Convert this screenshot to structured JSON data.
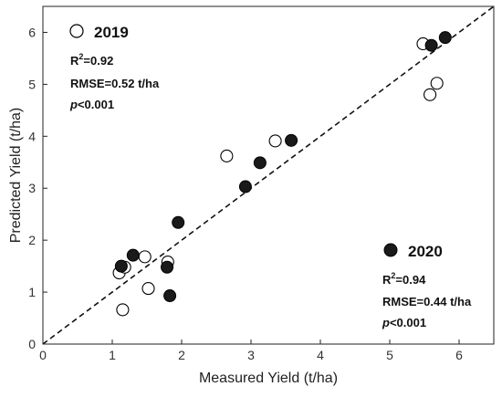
{
  "chart_data": {
    "type": "scatter",
    "title": "",
    "xlabel": "Measured Yield (t/ha)",
    "ylabel": "Predicted Yield (t/ha)",
    "xlim": [
      0,
      6.5
    ],
    "ylim": [
      0,
      6.5
    ],
    "x_ticks": [
      "0",
      "1",
      "2",
      "3",
      "4",
      "5",
      "6"
    ],
    "y_ticks": [
      "0",
      "1",
      "2",
      "3",
      "4",
      "5",
      "6"
    ],
    "grid": false,
    "reference_line": {
      "style": "dashed",
      "from": [
        0,
        0
      ],
      "to": [
        6.5,
        6.5
      ]
    },
    "series": [
      {
        "name": "2019",
        "marker": "open-circle",
        "color": "#000000",
        "points": [
          [
            1.1,
            1.37
          ],
          [
            1.18,
            1.48
          ],
          [
            1.15,
            0.66
          ],
          [
            1.47,
            1.68
          ],
          [
            1.52,
            1.07
          ],
          [
            1.8,
            1.58
          ],
          [
            2.65,
            3.62
          ],
          [
            3.35,
            3.91
          ],
          [
            5.48,
            5.78
          ],
          [
            5.58,
            4.8
          ],
          [
            5.68,
            5.02
          ]
        ],
        "stats": {
          "r2_label": "R",
          "r2_sup": "2",
          "r2_value": "=0.92",
          "rmse": "RMSE=0.52 t/ha",
          "p_symbol": "p",
          "p_value": "<0.001"
        }
      },
      {
        "name": "2020",
        "marker": "filled-circle",
        "color": "#1a1a1a",
        "points": [
          [
            1.13,
            1.5
          ],
          [
            1.3,
            1.71
          ],
          [
            1.79,
            1.48
          ],
          [
            1.83,
            0.93
          ],
          [
            1.95,
            2.34
          ],
          [
            2.92,
            3.03
          ],
          [
            3.13,
            3.49
          ],
          [
            3.58,
            3.92
          ],
          [
            5.6,
            5.75
          ],
          [
            5.8,
            5.9
          ]
        ],
        "stats": {
          "r2_label": "R",
          "r2_sup": "2",
          "r2_value": "=0.94",
          "rmse": "RMSE=0.44 t/ha",
          "p_symbol": "p",
          "p_value": "<0.001"
        }
      }
    ]
  }
}
